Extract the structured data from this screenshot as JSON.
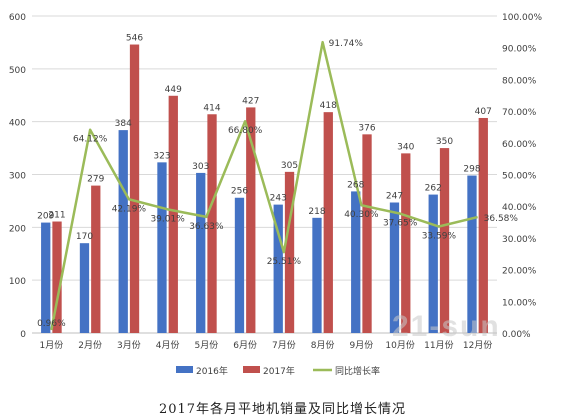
{
  "caption": "2017年各月平地机销量及同比增长情况",
  "watermark": "21-sun",
  "colors": {
    "series2016": "#4472C4",
    "series2017": "#C0504D",
    "growth": "#9BBB59",
    "grid": "#d9d9d9",
    "axis": "#bfbfbf",
    "text": "#404040",
    "bg": "#ffffff"
  },
  "chart_data": {
    "type": "bar",
    "categories": [
      "1月份",
      "2月份",
      "3月份",
      "4月份",
      "5月份",
      "6月份",
      "7月份",
      "8月份",
      "9月份",
      "10月份",
      "11月份",
      "12月份"
    ],
    "series": [
      {
        "name": "2016年",
        "type": "bar",
        "axis": "left",
        "values": [
          209,
          170,
          384,
          323,
          303,
          256,
          243,
          218,
          268,
          247,
          262,
          298
        ],
        "labels": [
          "209",
          "170",
          "384",
          "323",
          "303",
          "256",
          "243",
          "218",
          "268",
          "247",
          "262",
          "298"
        ]
      },
      {
        "name": "2017年",
        "type": "bar",
        "axis": "left",
        "values": [
          211,
          279,
          546,
          449,
          414,
          427,
          305,
          418,
          376,
          340,
          350,
          407
        ],
        "labels": [
          "211",
          "279",
          "546",
          "449",
          "414",
          "427",
          "305",
          "418",
          "376",
          "340",
          "350",
          "407"
        ]
      },
      {
        "name": "同比增长率",
        "type": "line",
        "axis": "right",
        "values": [
          0.96,
          64.12,
          42.19,
          39.01,
          36.63,
          66.8,
          25.51,
          91.74,
          40.3,
          37.65,
          33.59,
          36.58
        ],
        "labels": [
          "0.96%",
          "64.12%",
          "42.19%",
          "39.01%",
          "36.63%",
          "66.80%",
          "25.51%",
          "91.74%",
          "40.30%",
          "37.65%",
          "33.59%",
          "36.58%"
        ]
      }
    ],
    "ylim": [
      0,
      600
    ],
    "yticks": [
      "0",
      "100",
      "200",
      "300",
      "400",
      "500",
      "600"
    ],
    "y2lim": [
      0,
      100
    ],
    "y2ticks": [
      "0.00%",
      "10.00%",
      "20.00%",
      "30.00%",
      "40.00%",
      "50.00%",
      "60.00%",
      "70.00%",
      "80.00%",
      "90.00%",
      "100.00%"
    ],
    "grid": true,
    "legend": "bottom"
  }
}
